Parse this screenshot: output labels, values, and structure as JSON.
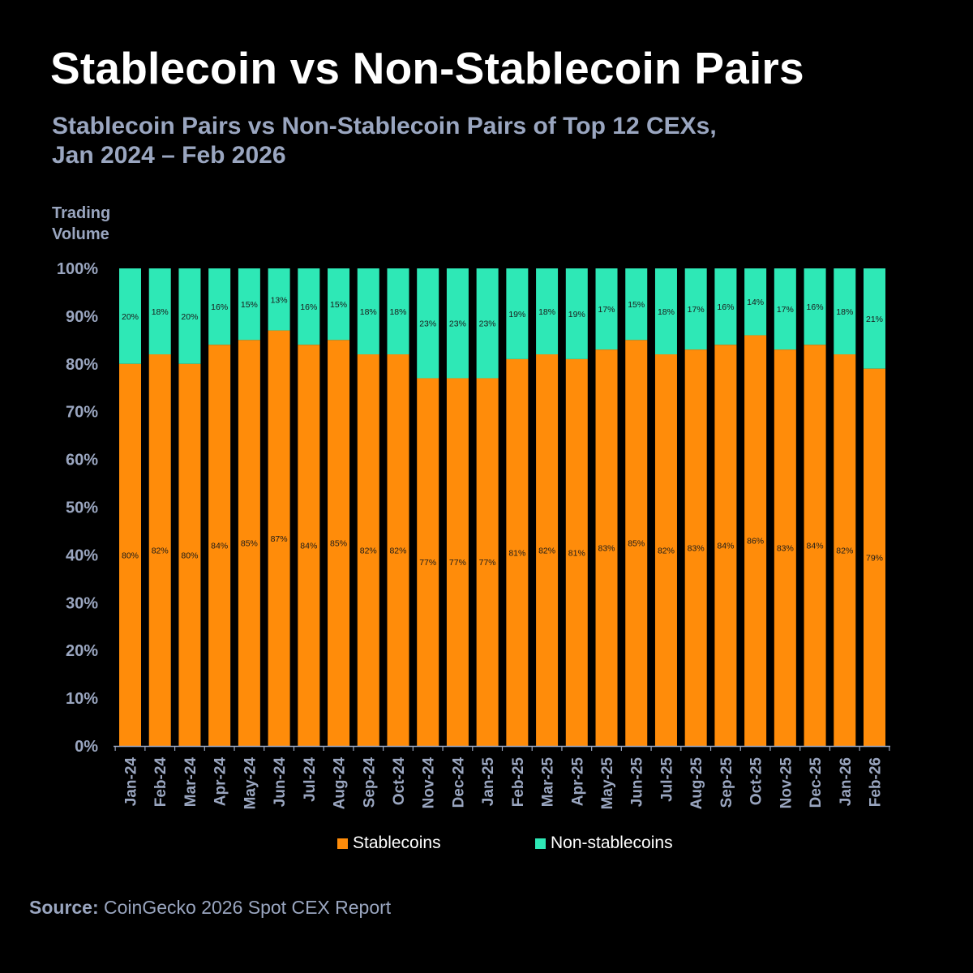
{
  "title": "Stablecoin vs Non-Stablecoin Pairs",
  "subtitle_line1": "Stablecoin Pairs vs Non-Stablecoin Pairs of Top 12 CEXs,",
  "subtitle_line2": "Jan 2024 – Feb 2026",
  "ylabel_line1": "Trading",
  "ylabel_line2": "Volume",
  "legend": {
    "stable_label": "Stablecoins",
    "non_stable_label": "Non-stablecoins"
  },
  "source": {
    "label": "Source:",
    "text": "CoinGecko 2026 Spot CEX Report"
  },
  "colors": {
    "stable": "#ff8c0a",
    "non_stable": "#2ee8b6",
    "axis_text": "#9aa6c0"
  },
  "chart_data": {
    "type": "bar",
    "stacked": true,
    "percent_stacked": true,
    "title": "Stablecoin vs Non-Stablecoin Pairs",
    "subtitle": "Stablecoin Pairs vs Non-Stablecoin Pairs of Top 12 CEXs, Jan 2024 – Feb 2026",
    "xlabel": "",
    "ylabel": "Trading Volume",
    "ylim": [
      0,
      100
    ],
    "y_ticks": [
      "0%",
      "10%",
      "20%",
      "30%",
      "40%",
      "50%",
      "60%",
      "70%",
      "80%",
      "90%",
      "100%"
    ],
    "grid": false,
    "legend_position": "bottom",
    "categories": [
      "Jan-24",
      "Feb-24",
      "Mar-24",
      "Apr-24",
      "May-24",
      "Jun-24",
      "Jul-24",
      "Aug-24",
      "Sep-24",
      "Oct-24",
      "Nov-24",
      "Dec-24",
      "Jan-25",
      "Feb-25",
      "Mar-25",
      "Apr-25",
      "May-25",
      "Jun-25",
      "Jul-25",
      "Aug-25",
      "Sep-25",
      "Oct-25",
      "Nov-25",
      "Dec-25",
      "Jan-26",
      "Feb-26"
    ],
    "series": [
      {
        "name": "Stablecoins",
        "values": [
          80,
          82,
          80,
          84,
          85,
          87,
          84,
          85,
          82,
          82,
          77,
          77,
          77,
          81,
          82,
          81,
          83,
          85,
          82,
          83,
          84,
          86,
          83,
          84,
          82,
          79
        ],
        "labels": [
          "80%",
          "82%",
          "80%",
          "84%",
          "85%",
          "87%",
          "84%",
          "85%",
          "82%",
          "82%",
          "77%",
          "77%",
          "77%",
          "81%",
          "82%",
          "81%",
          "83%",
          "85%",
          "82%",
          "83%",
          "84%",
          "86%",
          "83%",
          "84%",
          "82%",
          "79%"
        ]
      },
      {
        "name": "Non-stablecoins",
        "values": [
          20,
          18,
          20,
          16,
          15,
          13,
          16,
          15,
          18,
          18,
          23,
          23,
          23,
          19,
          18,
          19,
          17,
          15,
          18,
          17,
          16,
          14,
          17,
          16,
          18,
          21
        ],
        "labels": [
          "20%",
          "18%",
          "20%",
          "16%",
          "15%",
          "13%",
          "16%",
          "15%",
          "18%",
          "18%",
          "23%",
          "23%",
          "23%",
          "19%",
          "18%",
          "19%",
          "17%",
          "15%",
          "18%",
          "17%",
          "16%",
          "14%",
          "17%",
          "16%",
          "18%",
          "21%"
        ]
      }
    ]
  }
}
